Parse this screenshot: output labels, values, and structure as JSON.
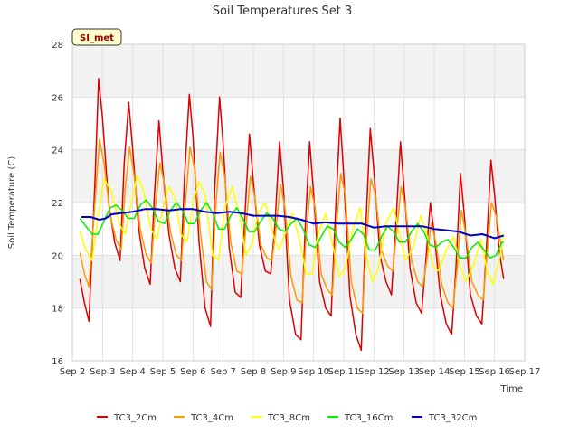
{
  "chart_data": {
    "type": "line",
    "title": "Soil Temperatures Set 3",
    "xlabel": "Time",
    "ylabel": "Soil Temperature (C)",
    "badge": "SI_met",
    "xlim": [
      2,
      17
    ],
    "ylim": [
      16,
      28
    ],
    "x_ticks": [
      2,
      3,
      4,
      5,
      6,
      7,
      8,
      9,
      10,
      11,
      12,
      13,
      14,
      15,
      16,
      17
    ],
    "x_tick_labels": [
      "Sep 2",
      "Sep 3",
      "Sep 4",
      "Sep 5",
      "Sep 6",
      "Sep 7",
      "Sep 8",
      "Sep 9",
      "Sep 10",
      "Sep 11",
      "Sep 12",
      "Sep 13",
      "Sep 14",
      "Sep 15",
      "Sep 16",
      "Sep 17"
    ],
    "y_ticks": [
      16,
      18,
      20,
      22,
      24,
      26,
      28
    ],
    "y_tick_labels": [
      "16",
      "18",
      "20",
      "22",
      "24",
      "26",
      "28"
    ],
    "grid": true,
    "legend_position": "bottom",
    "series": [
      {
        "name": "TC3_2Cm",
        "color": "#dd0000",
        "x": [
          2.25,
          2.4,
          2.55,
          2.75,
          2.87,
          3.0,
          3.2,
          3.4,
          3.58,
          3.72,
          3.87,
          4.0,
          4.2,
          4.4,
          4.58,
          4.72,
          4.87,
          5.0,
          5.2,
          5.4,
          5.58,
          5.72,
          5.88,
          6.0,
          6.2,
          6.4,
          6.58,
          6.72,
          6.88,
          7.0,
          7.2,
          7.4,
          7.58,
          7.72,
          7.87,
          8.0,
          8.2,
          8.4,
          8.58,
          8.72,
          8.87,
          9.0,
          9.2,
          9.4,
          9.58,
          9.72,
          9.87,
          10.0,
          10.2,
          10.4,
          10.58,
          10.72,
          10.88,
          11.0,
          11.2,
          11.4,
          11.58,
          11.72,
          11.88,
          12.0,
          12.2,
          12.4,
          12.58,
          12.72,
          12.88,
          13.0,
          13.2,
          13.4,
          13.58,
          13.72,
          13.87,
          14.0,
          14.2,
          14.4,
          14.58,
          14.72,
          14.87,
          15.0,
          15.2,
          15.4,
          15.58,
          15.72,
          15.88,
          16.0,
          16.15,
          16.3
        ],
        "values": [
          19.1,
          18.2,
          17.5,
          22.8,
          26.7,
          25.2,
          22.0,
          20.5,
          19.8,
          23.5,
          25.8,
          24.0,
          21.0,
          19.5,
          18.9,
          22.3,
          25.1,
          23.2,
          20.8,
          19.5,
          19.0,
          23.0,
          26.1,
          24.5,
          20.5,
          18.0,
          17.3,
          22.5,
          26.0,
          24.2,
          20.3,
          18.6,
          18.4,
          21.5,
          24.6,
          22.8,
          20.4,
          19.4,
          19.3,
          21.2,
          24.3,
          22.5,
          18.3,
          17.0,
          16.8,
          21.0,
          24.3,
          22.3,
          19.0,
          18.0,
          17.7,
          21.5,
          25.2,
          23.0,
          18.5,
          17.0,
          16.4,
          20.8,
          24.8,
          23.2,
          20.0,
          19.0,
          18.5,
          21.0,
          24.3,
          22.5,
          19.5,
          18.2,
          17.8,
          19.8,
          22.0,
          20.8,
          18.5,
          17.4,
          17.0,
          19.5,
          23.1,
          21.5,
          18.5,
          17.7,
          17.4,
          20.0,
          23.6,
          22.3,
          20.2,
          19.1
        ]
      },
      {
        "name": "TC3_4Cm",
        "color": "#ff9900",
        "x": [
          2.25,
          2.4,
          2.55,
          2.75,
          2.9,
          3.05,
          3.25,
          3.45,
          3.62,
          3.75,
          3.9,
          4.05,
          4.25,
          4.45,
          4.62,
          4.75,
          4.9,
          5.05,
          5.25,
          5.45,
          5.62,
          5.75,
          5.9,
          6.05,
          6.25,
          6.45,
          6.62,
          6.75,
          6.9,
          7.05,
          7.25,
          7.45,
          7.62,
          7.75,
          7.9,
          8.05,
          8.25,
          8.45,
          8.62,
          8.75,
          8.9,
          9.05,
          9.25,
          9.45,
          9.62,
          9.75,
          9.9,
          10.05,
          10.25,
          10.45,
          10.62,
          10.75,
          10.9,
          11.05,
          11.25,
          11.45,
          11.62,
          11.75,
          11.9,
          12.05,
          12.25,
          12.45,
          12.62,
          12.75,
          12.9,
          13.05,
          13.25,
          13.45,
          13.62,
          13.75,
          13.9,
          14.05,
          14.25,
          14.45,
          14.62,
          14.75,
          14.9,
          15.05,
          15.25,
          15.45,
          15.62,
          15.75,
          15.9,
          16.05,
          16.2,
          16.3
        ],
        "values": [
          20.1,
          19.3,
          18.8,
          22.0,
          24.4,
          23.5,
          21.5,
          20.6,
          20.2,
          22.5,
          24.1,
          23.0,
          21.0,
          20.0,
          19.7,
          21.8,
          23.5,
          22.7,
          20.9,
          20.0,
          19.8,
          22.0,
          24.1,
          23.3,
          20.8,
          19.0,
          18.7,
          21.8,
          23.9,
          23.0,
          20.5,
          19.4,
          19.3,
          21.0,
          23.0,
          22.2,
          20.4,
          19.9,
          19.8,
          21.0,
          22.7,
          21.8,
          19.2,
          18.3,
          18.2,
          20.7,
          22.6,
          21.8,
          19.3,
          18.7,
          18.5,
          21.0,
          23.1,
          22.3,
          19.0,
          18.0,
          17.8,
          20.5,
          22.9,
          22.3,
          20.2,
          19.6,
          19.4,
          20.8,
          22.6,
          21.8,
          19.8,
          19.0,
          18.8,
          19.8,
          21.2,
          20.5,
          18.9,
          18.2,
          18.0,
          19.4,
          21.7,
          20.8,
          19.0,
          18.5,
          18.3,
          20.0,
          22.0,
          21.5,
          20.5,
          19.8
        ]
      },
      {
        "name": "TC3_8Cm",
        "color": "#ffff00",
        "x": [
          2.25,
          2.45,
          2.65,
          2.85,
          3.05,
          3.3,
          3.55,
          3.75,
          3.95,
          4.15,
          4.35,
          4.6,
          4.8,
          5.0,
          5.2,
          5.4,
          5.6,
          5.8,
          6.0,
          6.2,
          6.4,
          6.65,
          6.85,
          7.05,
          7.3,
          7.55,
          7.75,
          7.95,
          8.15,
          8.4,
          8.65,
          8.85,
          9.05,
          9.3,
          9.55,
          9.75,
          9.95,
          10.15,
          10.4,
          10.65,
          10.85,
          11.05,
          11.3,
          11.55,
          11.75,
          11.95,
          12.15,
          12.4,
          12.65,
          12.85,
          13.05,
          13.3,
          13.55,
          13.75,
          13.95,
          14.15,
          14.4,
          14.65,
          14.85,
          15.05,
          15.3,
          15.55,
          15.75,
          15.95,
          16.15,
          16.3
        ],
        "values": [
          20.9,
          20.2,
          19.8,
          21.5,
          22.9,
          22.4,
          21.2,
          20.8,
          22.0,
          23.0,
          22.5,
          21.0,
          20.6,
          21.8,
          22.6,
          22.2,
          20.8,
          20.5,
          22.0,
          22.8,
          22.3,
          20.0,
          19.8,
          21.8,
          22.6,
          21.5,
          20.0,
          20.4,
          21.6,
          22.0,
          20.8,
          20.2,
          20.8,
          21.6,
          20.5,
          19.3,
          19.3,
          20.8,
          21.6,
          20.3,
          19.2,
          19.5,
          21.0,
          21.8,
          20.0,
          19.0,
          19.5,
          21.2,
          21.8,
          20.8,
          19.8,
          20.3,
          21.5,
          20.8,
          19.6,
          19.4,
          20.2,
          20.7,
          19.6,
          19.0,
          19.6,
          20.6,
          19.4,
          18.9,
          19.8,
          20.8
        ]
      },
      {
        "name": "TC3_16Cm",
        "color": "#00ee00",
        "x": [
          2.25,
          2.45,
          2.65,
          2.85,
          3.05,
          3.25,
          3.45,
          3.65,
          3.85,
          4.05,
          4.25,
          4.45,
          4.65,
          4.85,
          5.05,
          5.25,
          5.45,
          5.65,
          5.85,
          6.05,
          6.25,
          6.45,
          6.65,
          6.85,
          7.05,
          7.25,
          7.45,
          7.65,
          7.85,
          8.05,
          8.25,
          8.45,
          8.65,
          8.85,
          9.05,
          9.25,
          9.45,
          9.65,
          9.85,
          10.05,
          10.25,
          10.45,
          10.65,
          10.85,
          11.05,
          11.25,
          11.45,
          11.65,
          11.85,
          12.05,
          12.25,
          12.45,
          12.65,
          12.85,
          13.05,
          13.25,
          13.45,
          13.65,
          13.85,
          14.05,
          14.25,
          14.45,
          14.65,
          14.85,
          15.05,
          15.25,
          15.45,
          15.65,
          15.85,
          16.05,
          16.25,
          16.3
        ],
        "values": [
          21.4,
          21.1,
          20.8,
          20.8,
          21.3,
          21.8,
          21.9,
          21.7,
          21.4,
          21.4,
          21.9,
          22.1,
          21.8,
          21.3,
          21.2,
          21.7,
          22.0,
          21.7,
          21.2,
          21.2,
          21.7,
          22.0,
          21.6,
          21.0,
          21.0,
          21.5,
          21.8,
          21.4,
          20.9,
          20.9,
          21.3,
          21.6,
          21.4,
          21.0,
          20.9,
          21.2,
          21.4,
          21.0,
          20.4,
          20.3,
          20.7,
          21.1,
          21.0,
          20.5,
          20.3,
          20.6,
          21.0,
          20.8,
          20.2,
          20.2,
          20.7,
          21.1,
          20.9,
          20.5,
          20.5,
          20.9,
          21.2,
          20.9,
          20.4,
          20.3,
          20.5,
          20.6,
          20.3,
          19.9,
          19.9,
          20.3,
          20.5,
          20.2,
          19.9,
          20.0,
          20.5,
          20.5
        ]
      },
      {
        "name": "TC3_32Cm",
        "color": "#0000cc",
        "x": [
          2.3,
          2.6,
          2.9,
          3.1,
          3.3,
          3.6,
          4.0,
          4.4,
          4.8,
          5.2,
          5.6,
          6.0,
          6.4,
          6.8,
          7.2,
          7.6,
          8.0,
          8.4,
          8.8,
          9.2,
          9.6,
          10.0,
          10.4,
          10.8,
          11.2,
          11.6,
          12.0,
          12.4,
          12.8,
          13.2,
          13.6,
          14.0,
          14.4,
          14.8,
          15.2,
          15.6,
          16.0,
          16.3
        ],
        "values": [
          21.45,
          21.45,
          21.35,
          21.4,
          21.55,
          21.6,
          21.65,
          21.75,
          21.75,
          21.7,
          21.75,
          21.75,
          21.65,
          21.6,
          21.65,
          21.6,
          21.5,
          21.5,
          21.5,
          21.45,
          21.35,
          21.2,
          21.25,
          21.2,
          21.2,
          21.2,
          21.05,
          21.1,
          21.1,
          21.1,
          21.1,
          21.0,
          20.95,
          20.9,
          20.75,
          20.8,
          20.65,
          20.75
        ]
      }
    ]
  }
}
